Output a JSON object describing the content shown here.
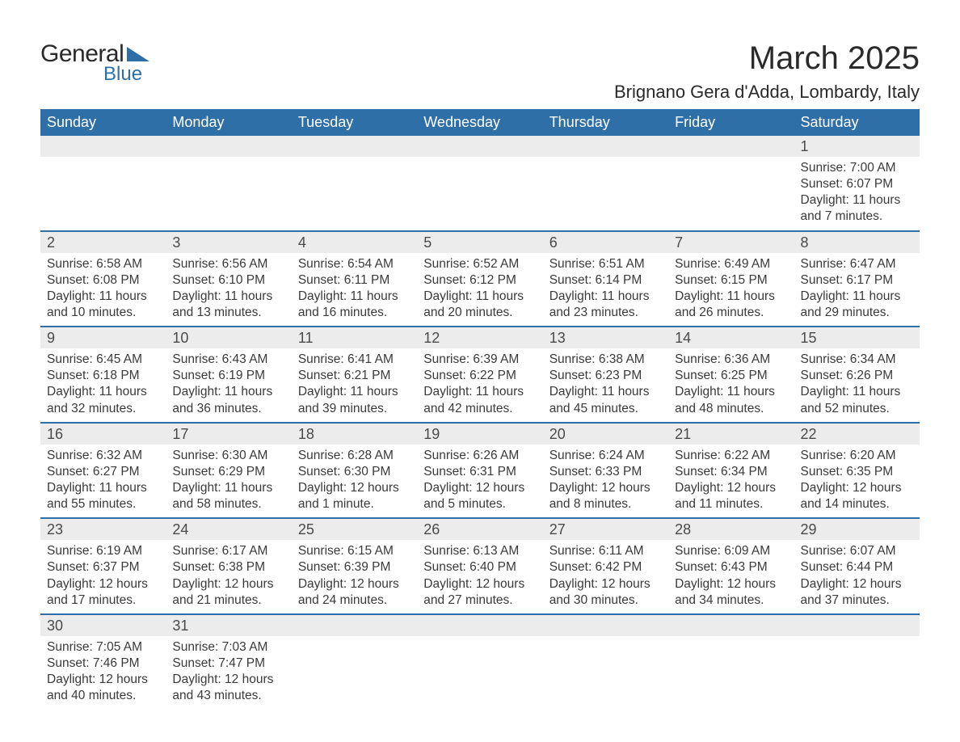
{
  "logo": {
    "text_general": "General",
    "text_blue": "Blue",
    "shape_color": "#2f6fa8"
  },
  "header": {
    "month_title": "March 2025",
    "location": "Brignano Gera d'Adda, Lombardy, Italy"
  },
  "styling": {
    "header_bg": "#2f6fa8",
    "header_text_color": "#ffffff",
    "daynum_bg": "#ececec",
    "row_divider_color": "#2f6fa8",
    "body_text_color": "#3a3a3a",
    "title_fontsize": 40,
    "location_fontsize": 22,
    "weekday_fontsize": 18,
    "daynum_fontsize": 18,
    "cell_fontsize": 15.5,
    "page_bg": "#ffffff"
  },
  "calendar": {
    "type": "table",
    "weekdays": [
      "Sunday",
      "Monday",
      "Tuesday",
      "Wednesday",
      "Thursday",
      "Friday",
      "Saturday"
    ],
    "weeks": [
      [
        null,
        null,
        null,
        null,
        null,
        null,
        {
          "n": "1",
          "sunrise": "7:00 AM",
          "sunset": "6:07 PM",
          "daylight": "11 hours and 7 minutes."
        }
      ],
      [
        {
          "n": "2",
          "sunrise": "6:58 AM",
          "sunset": "6:08 PM",
          "daylight": "11 hours and 10 minutes."
        },
        {
          "n": "3",
          "sunrise": "6:56 AM",
          "sunset": "6:10 PM",
          "daylight": "11 hours and 13 minutes."
        },
        {
          "n": "4",
          "sunrise": "6:54 AM",
          "sunset": "6:11 PM",
          "daylight": "11 hours and 16 minutes."
        },
        {
          "n": "5",
          "sunrise": "6:52 AM",
          "sunset": "6:12 PM",
          "daylight": "11 hours and 20 minutes."
        },
        {
          "n": "6",
          "sunrise": "6:51 AM",
          "sunset": "6:14 PM",
          "daylight": "11 hours and 23 minutes."
        },
        {
          "n": "7",
          "sunrise": "6:49 AM",
          "sunset": "6:15 PM",
          "daylight": "11 hours and 26 minutes."
        },
        {
          "n": "8",
          "sunrise": "6:47 AM",
          "sunset": "6:17 PM",
          "daylight": "11 hours and 29 minutes."
        }
      ],
      [
        {
          "n": "9",
          "sunrise": "6:45 AM",
          "sunset": "6:18 PM",
          "daylight": "11 hours and 32 minutes."
        },
        {
          "n": "10",
          "sunrise": "6:43 AM",
          "sunset": "6:19 PM",
          "daylight": "11 hours and 36 minutes."
        },
        {
          "n": "11",
          "sunrise": "6:41 AM",
          "sunset": "6:21 PM",
          "daylight": "11 hours and 39 minutes."
        },
        {
          "n": "12",
          "sunrise": "6:39 AM",
          "sunset": "6:22 PM",
          "daylight": "11 hours and 42 minutes."
        },
        {
          "n": "13",
          "sunrise": "6:38 AM",
          "sunset": "6:23 PM",
          "daylight": "11 hours and 45 minutes."
        },
        {
          "n": "14",
          "sunrise": "6:36 AM",
          "sunset": "6:25 PM",
          "daylight": "11 hours and 48 minutes."
        },
        {
          "n": "15",
          "sunrise": "6:34 AM",
          "sunset": "6:26 PM",
          "daylight": "11 hours and 52 minutes."
        }
      ],
      [
        {
          "n": "16",
          "sunrise": "6:32 AM",
          "sunset": "6:27 PM",
          "daylight": "11 hours and 55 minutes."
        },
        {
          "n": "17",
          "sunrise": "6:30 AM",
          "sunset": "6:29 PM",
          "daylight": "11 hours and 58 minutes."
        },
        {
          "n": "18",
          "sunrise": "6:28 AM",
          "sunset": "6:30 PM",
          "daylight": "12 hours and 1 minute."
        },
        {
          "n": "19",
          "sunrise": "6:26 AM",
          "sunset": "6:31 PM",
          "daylight": "12 hours and 5 minutes."
        },
        {
          "n": "20",
          "sunrise": "6:24 AM",
          "sunset": "6:33 PM",
          "daylight": "12 hours and 8 minutes."
        },
        {
          "n": "21",
          "sunrise": "6:22 AM",
          "sunset": "6:34 PM",
          "daylight": "12 hours and 11 minutes."
        },
        {
          "n": "22",
          "sunrise": "6:20 AM",
          "sunset": "6:35 PM",
          "daylight": "12 hours and 14 minutes."
        }
      ],
      [
        {
          "n": "23",
          "sunrise": "6:19 AM",
          "sunset": "6:37 PM",
          "daylight": "12 hours and 17 minutes."
        },
        {
          "n": "24",
          "sunrise": "6:17 AM",
          "sunset": "6:38 PM",
          "daylight": "12 hours and 21 minutes."
        },
        {
          "n": "25",
          "sunrise": "6:15 AM",
          "sunset": "6:39 PM",
          "daylight": "12 hours and 24 minutes."
        },
        {
          "n": "26",
          "sunrise": "6:13 AM",
          "sunset": "6:40 PM",
          "daylight": "12 hours and 27 minutes."
        },
        {
          "n": "27",
          "sunrise": "6:11 AM",
          "sunset": "6:42 PM",
          "daylight": "12 hours and 30 minutes."
        },
        {
          "n": "28",
          "sunrise": "6:09 AM",
          "sunset": "6:43 PM",
          "daylight": "12 hours and 34 minutes."
        },
        {
          "n": "29",
          "sunrise": "6:07 AM",
          "sunset": "6:44 PM",
          "daylight": "12 hours and 37 minutes."
        }
      ],
      [
        {
          "n": "30",
          "sunrise": "7:05 AM",
          "sunset": "7:46 PM",
          "daylight": "12 hours and 40 minutes."
        },
        {
          "n": "31",
          "sunrise": "7:03 AM",
          "sunset": "7:47 PM",
          "daylight": "12 hours and 43 minutes."
        },
        null,
        null,
        null,
        null,
        null
      ]
    ],
    "labels": {
      "sunrise": "Sunrise: ",
      "sunset": "Sunset: ",
      "daylight": "Daylight: "
    }
  }
}
